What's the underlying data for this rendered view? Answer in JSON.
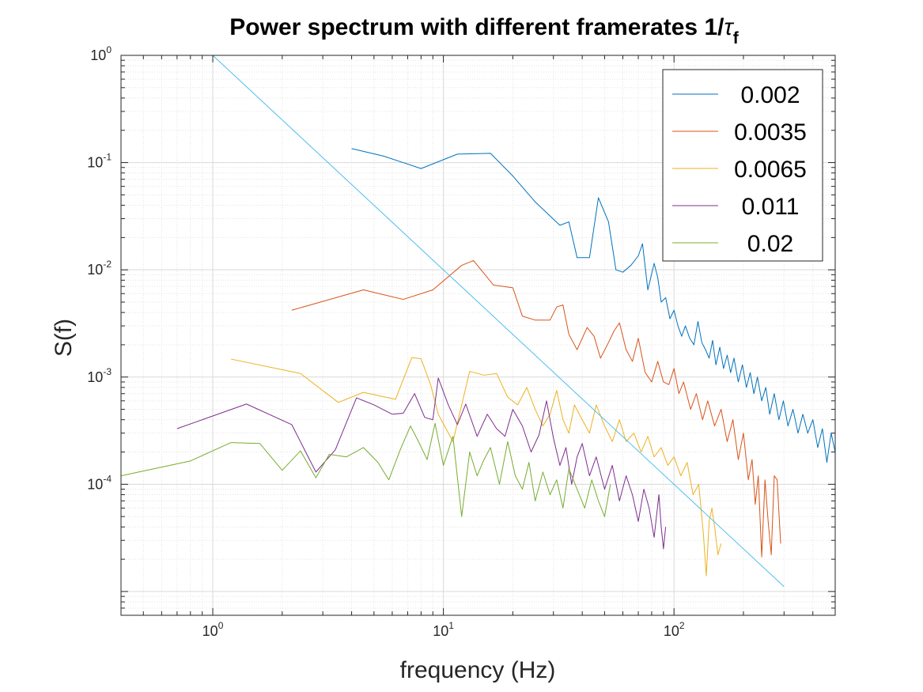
{
  "chart_data": {
    "type": "line",
    "title": "Power spectrum with different framerates 1/",
    "title_symbol": "τ",
    "title_subscript": "f",
    "xlabel": "frequency (Hz)",
    "ylabel": "S(f)",
    "xscale": "log",
    "yscale": "log",
    "xlim": [
      0.4,
      500
    ],
    "ylim": [
      6e-06,
      1
    ],
    "grid": true,
    "minor_grid": true,
    "legend_position": "top-right",
    "x_ticks": [
      {
        "value": 1,
        "base": "10",
        "exp": "0"
      },
      {
        "value": 10,
        "base": "10",
        "exp": "1"
      },
      {
        "value": 100,
        "base": "10",
        "exp": "2"
      }
    ],
    "y_ticks": [
      {
        "value": 1,
        "base": "10",
        "exp": "0"
      },
      {
        "value": 0.1,
        "base": "10",
        "exp": "-1"
      },
      {
        "value": 0.01,
        "base": "10",
        "exp": "-2"
      },
      {
        "value": 0.001,
        "base": "10",
        "exp": "-3"
      },
      {
        "value": 0.0001,
        "base": "10",
        "exp": "-4"
      }
    ],
    "series": [
      {
        "name": "0.002",
        "color": "#0072BD",
        "points": [
          [
            4.0,
            0.135
          ],
          [
            5.5,
            0.115
          ],
          [
            8.0,
            0.088
          ],
          [
            11.5,
            0.12
          ],
          [
            16,
            0.122
          ],
          [
            20,
            0.075
          ],
          [
            25,
            0.043
          ],
          [
            32,
            0.026
          ],
          [
            35,
            0.028
          ],
          [
            38,
            0.013
          ],
          [
            40,
            0.013
          ],
          [
            43,
            0.013
          ],
          [
            47,
            0.047
          ],
          [
            52,
            0.028
          ],
          [
            56,
            0.01
          ],
          [
            60,
            0.0095
          ],
          [
            65,
            0.011
          ],
          [
            70,
            0.0135
          ],
          [
            73,
            0.0175
          ],
          [
            77,
            0.0065
          ],
          [
            82,
            0.0115
          ],
          [
            85,
            0.0085
          ],
          [
            88,
            0.005
          ],
          [
            92,
            0.0055
          ],
          [
            96,
            0.0035
          ],
          [
            100,
            0.0042
          ],
          [
            104,
            0.003
          ],
          [
            108,
            0.0024
          ],
          [
            112,
            0.003
          ],
          [
            117,
            0.0023
          ],
          [
            122,
            0.002
          ],
          [
            127,
            0.0033
          ],
          [
            132,
            0.0021
          ],
          [
            137,
            0.0018
          ],
          [
            142,
            0.0015
          ],
          [
            147,
            0.0022
          ],
          [
            152,
            0.0013
          ],
          [
            158,
            0.0019
          ],
          [
            164,
            0.0012
          ],
          [
            170,
            0.0016
          ],
          [
            176,
            0.0011
          ],
          [
            182,
            0.0015
          ],
          [
            190,
            0.0009
          ],
          [
            198,
            0.0013
          ],
          [
            206,
            0.0008
          ],
          [
            214,
            0.0011
          ],
          [
            222,
            0.0007
          ],
          [
            230,
            0.001
          ],
          [
            240,
            0.0006
          ],
          [
            250,
            0.0008
          ],
          [
            260,
            0.00045
          ],
          [
            272,
            0.0007
          ],
          [
            285,
            0.0004
          ],
          [
            298,
            0.0006
          ],
          [
            312,
            0.00035
          ],
          [
            328,
            0.0005
          ],
          [
            345,
            0.0003
          ],
          [
            362,
            0.00045
          ],
          [
            380,
            0.0003
          ],
          [
            400,
            0.0004
          ],
          [
            420,
            0.00022
          ],
          [
            440,
            0.00033
          ],
          [
            460,
            0.00016
          ],
          [
            480,
            0.0003
          ],
          [
            500,
            0.0002
          ]
        ]
      },
      {
        "name": "0.0035",
        "color": "#D95319",
        "points": [
          [
            2.2,
            0.0042
          ],
          [
            4.5,
            0.0065
          ],
          [
            6.7,
            0.0053
          ],
          [
            9,
            0.0065
          ],
          [
            12,
            0.011
          ],
          [
            13.5,
            0.0122
          ],
          [
            16.5,
            0.0072
          ],
          [
            20,
            0.0068
          ],
          [
            22,
            0.0037
          ],
          [
            25,
            0.0034
          ],
          [
            29,
            0.0034
          ],
          [
            31,
            0.0045
          ],
          [
            33,
            0.0047
          ],
          [
            35,
            0.0025
          ],
          [
            38,
            0.0018
          ],
          [
            42,
            0.0029
          ],
          [
            45,
            0.0024
          ],
          [
            48,
            0.0015
          ],
          [
            52,
            0.0021
          ],
          [
            55,
            0.0027
          ],
          [
            58,
            0.0032
          ],
          [
            62,
            0.0018
          ],
          [
            66,
            0.0014
          ],
          [
            70,
            0.0023
          ],
          [
            75,
            0.0011
          ],
          [
            80,
            0.0009
          ],
          [
            85,
            0.0014
          ],
          [
            90,
            0.0009
          ],
          [
            95,
            0.00085
          ],
          [
            100,
            0.0012
          ],
          [
            105,
            0.0007
          ],
          [
            110,
            0.0009
          ],
          [
            118,
            0.0005
          ],
          [
            125,
            0.0007
          ],
          [
            133,
            0.0004
          ],
          [
            140,
            0.0006
          ],
          [
            150,
            0.00035
          ],
          [
            160,
            0.0005
          ],
          [
            170,
            0.00025
          ],
          [
            180,
            0.0004
          ],
          [
            190,
            0.00017
          ],
          [
            200,
            0.0003
          ],
          [
            210,
            0.00011
          ],
          [
            218,
            0.00017
          ],
          [
            225,
            6.5e-05
          ],
          [
            232,
            0.00012
          ],
          [
            240,
            2.1e-05
          ],
          [
            248,
            0.00011
          ],
          [
            256,
            4.5e-05
          ],
          [
            264,
            2.2e-05
          ],
          [
            272,
            0.00012
          ],
          [
            280,
            0.00011
          ],
          [
            290,
            2.8e-05
          ]
        ]
      },
      {
        "name": "0.0065",
        "color": "#EDB120",
        "points": [
          [
            1.2,
            0.00147
          ],
          [
            2.4,
            0.00108
          ],
          [
            3.5,
            0.00058
          ],
          [
            4.5,
            0.00072
          ],
          [
            6.2,
            0.00062
          ],
          [
            7.3,
            0.00152
          ],
          [
            8.0,
            0.00148
          ],
          [
            8.8,
            0.00085
          ],
          [
            9.5,
            0.00045
          ],
          [
            11,
            0.00025
          ],
          [
            13,
            0.00113
          ],
          [
            15,
            0.00104
          ],
          [
            17,
            0.00108
          ],
          [
            19,
            0.00065
          ],
          [
            21,
            0.00055
          ],
          [
            23,
            0.0008
          ],
          [
            25,
            0.0005
          ],
          [
            27,
            0.00035
          ],
          [
            29,
            0.00045
          ],
          [
            31,
            0.00075
          ],
          [
            33,
            0.0004
          ],
          [
            35,
            0.0003
          ],
          [
            37,
            0.00055
          ],
          [
            40,
            0.0004
          ],
          [
            43,
            0.0003
          ],
          [
            46,
            0.00055
          ],
          [
            50,
            0.00035
          ],
          [
            54,
            0.00025
          ],
          [
            58,
            0.0004
          ],
          [
            62,
            0.00025
          ],
          [
            67,
            0.0003
          ],
          [
            72,
            0.0002
          ],
          [
            77,
            0.00028
          ],
          [
            82,
            0.00018
          ],
          [
            88,
            0.00022
          ],
          [
            94,
            0.00015
          ],
          [
            100,
            0.00018
          ],
          [
            107,
            0.00012
          ],
          [
            114,
            0.00016
          ],
          [
            121,
            8e-05
          ],
          [
            128,
            0.0001
          ],
          [
            134,
            3.5e-05
          ],
          [
            138,
            1.4e-05
          ],
          [
            142,
            4.5e-05
          ],
          [
            146,
            6e-05
          ],
          [
            150,
            4e-05
          ],
          [
            155,
            2.2e-05
          ],
          [
            160,
            2.8e-05
          ]
        ]
      },
      {
        "name": "0.011",
        "color": "#7E2F8E",
        "points": [
          [
            0.7,
            0.00033
          ],
          [
            1.4,
            0.00056
          ],
          [
            2.2,
            0.00036
          ],
          [
            2.8,
            0.00013
          ],
          [
            3.4,
            0.00021
          ],
          [
            4.2,
            0.00064
          ],
          [
            5.0,
            0.00055
          ],
          [
            6.0,
            0.00045
          ],
          [
            6.7,
            0.00046
          ],
          [
            7.5,
            0.0007
          ],
          [
            8.3,
            0.00042
          ],
          [
            9.0,
            0.0004
          ],
          [
            9.5,
            0.00098
          ],
          [
            10.5,
            0.00055
          ],
          [
            11.5,
            0.00036
          ],
          [
            12.5,
            0.00056
          ],
          [
            14,
            0.00028
          ],
          [
            15.5,
            0.00045
          ],
          [
            17,
            0.00033
          ],
          [
            18.5,
            0.00028
          ],
          [
            20,
            0.0005
          ],
          [
            22,
            0.00035
          ],
          [
            24,
            0.0002
          ],
          [
            26,
            0.00029
          ],
          [
            28,
            0.0006
          ],
          [
            30,
            0.00027
          ],
          [
            32,
            0.00015
          ],
          [
            34,
            0.00022
          ],
          [
            36,
            0.0001
          ],
          [
            38,
            0.00018
          ],
          [
            40,
            0.00024
          ],
          [
            43,
            0.00012
          ],
          [
            46,
            0.00018
          ],
          [
            50,
            9e-05
          ],
          [
            54,
            0.00015
          ],
          [
            58,
            7e-05
          ],
          [
            62,
            0.00012
          ],
          [
            66,
            8e-05
          ],
          [
            70,
            4.5e-05
          ],
          [
            74,
            9e-05
          ],
          [
            78,
            6e-05
          ],
          [
            82,
            3.2e-05
          ],
          [
            86,
            8e-05
          ],
          [
            88,
            4e-05
          ],
          [
            90,
            2.5e-05
          ],
          [
            92,
            4e-05
          ]
        ]
      },
      {
        "name": "0.02",
        "color": "#77AC30",
        "points": [
          [
            0.4,
            0.00012
          ],
          [
            0.8,
            0.000165
          ],
          [
            1.2,
            0.000245
          ],
          [
            1.6,
            0.00024
          ],
          [
            2.0,
            0.000135
          ],
          [
            2.4,
            0.000205
          ],
          [
            2.8,
            0.000115
          ],
          [
            3.2,
            0.00019
          ],
          [
            3.8,
            0.00018
          ],
          [
            4.5,
            0.00022
          ],
          [
            5.2,
            0.00016
          ],
          [
            5.8,
            0.00011
          ],
          [
            6.5,
            0.00021
          ],
          [
            7.2,
            0.00035
          ],
          [
            7.8,
            0.00025
          ],
          [
            8.5,
            0.00017
          ],
          [
            9.2,
            0.00037
          ],
          [
            10,
            0.00015
          ],
          [
            11,
            0.00028
          ],
          [
            12,
            5e-05
          ],
          [
            13,
            0.0002
          ],
          [
            14,
            0.00012
          ],
          [
            15,
            0.00017
          ],
          [
            16,
            0.00022
          ],
          [
            17.5,
            0.0001
          ],
          [
            19,
            0.00025
          ],
          [
            20.5,
            0.00012
          ],
          [
            22,
            9e-05
          ],
          [
            23.5,
            0.00016
          ],
          [
            25,
            7e-05
          ],
          [
            27,
            0.00013
          ],
          [
            29,
            8e-05
          ],
          [
            31,
            0.00011
          ],
          [
            33,
            6e-05
          ],
          [
            35,
            0.00014
          ],
          [
            38,
            9e-05
          ],
          [
            41,
            6e-05
          ],
          [
            44,
            0.00011
          ],
          [
            47,
            7e-05
          ],
          [
            50,
            5e-05
          ],
          [
            53,
            0.0001
          ]
        ]
      },
      {
        "name": "",
        "color": "#4DBEEE",
        "points": [
          [
            1,
            1
          ],
          [
            300,
            1.11e-05
          ]
        ]
      }
    ]
  }
}
